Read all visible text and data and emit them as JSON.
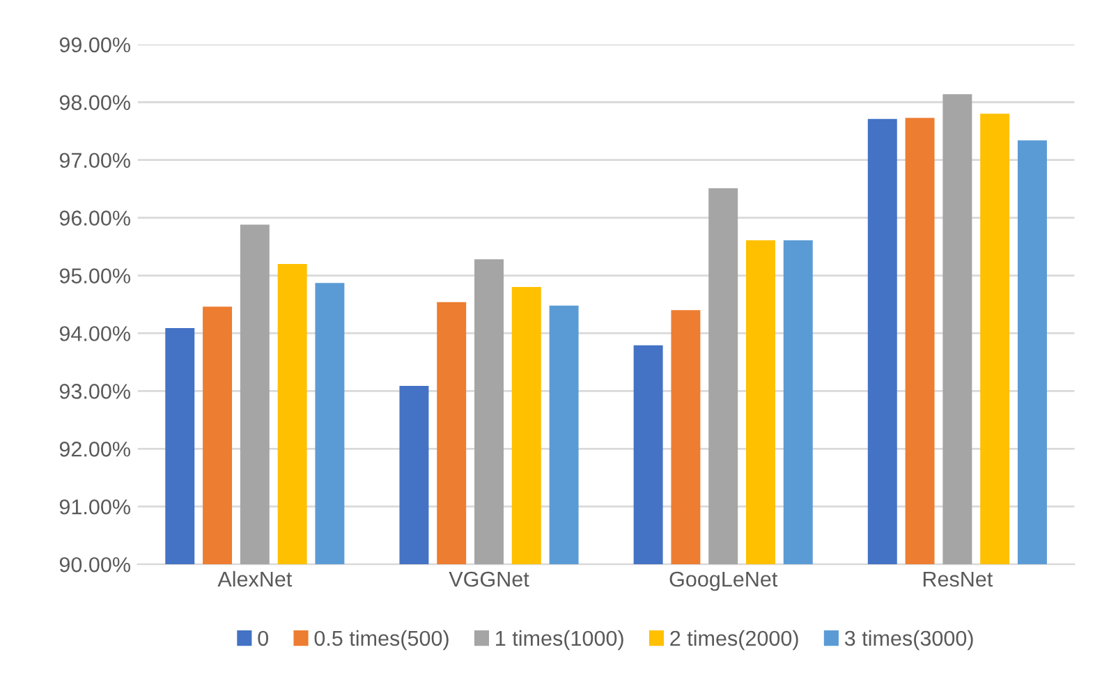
{
  "chart_data": {
    "type": "bar",
    "categories": [
      "AlexNet",
      "VGGNet",
      "GoogLeNet",
      "ResNet"
    ],
    "series": [
      {
        "name": "0",
        "color": "#4472c4",
        "values": [
          94.09,
          93.09,
          93.79,
          97.71
        ]
      },
      {
        "name": "0.5 times(500)",
        "color": "#ed7d31",
        "values": [
          94.46,
          94.54,
          94.4,
          97.73
        ]
      },
      {
        "name": "1 times(1000)",
        "color": "#a5a5a5",
        "values": [
          95.88,
          95.28,
          96.51,
          98.14
        ]
      },
      {
        "name": "2 times(2000)",
        "color": "#ffc000",
        "values": [
          95.2,
          94.8,
          95.61,
          97.8
        ]
      },
      {
        "name": "3 times(3000)",
        "color": "#5b9bd5",
        "values": [
          94.87,
          94.48,
          95.61,
          97.34
        ]
      }
    ],
    "ylim": [
      90,
      99
    ],
    "yticks": [
      {
        "value": 90,
        "label": "90.00%"
      },
      {
        "value": 91,
        "label": "91.00%"
      },
      {
        "value": 92,
        "label": "92.00%"
      },
      {
        "value": 93,
        "label": "93.00%"
      },
      {
        "value": 94,
        "label": "94.00%"
      },
      {
        "value": 95,
        "label": "95.00%"
      },
      {
        "value": 96,
        "label": "96.00%"
      },
      {
        "value": 97,
        "label": "97.00%"
      },
      {
        "value": 98,
        "label": "98.00%"
      },
      {
        "value": 99,
        "label": "99.00%"
      }
    ],
    "grid": "y",
    "legend": "bottom"
  }
}
